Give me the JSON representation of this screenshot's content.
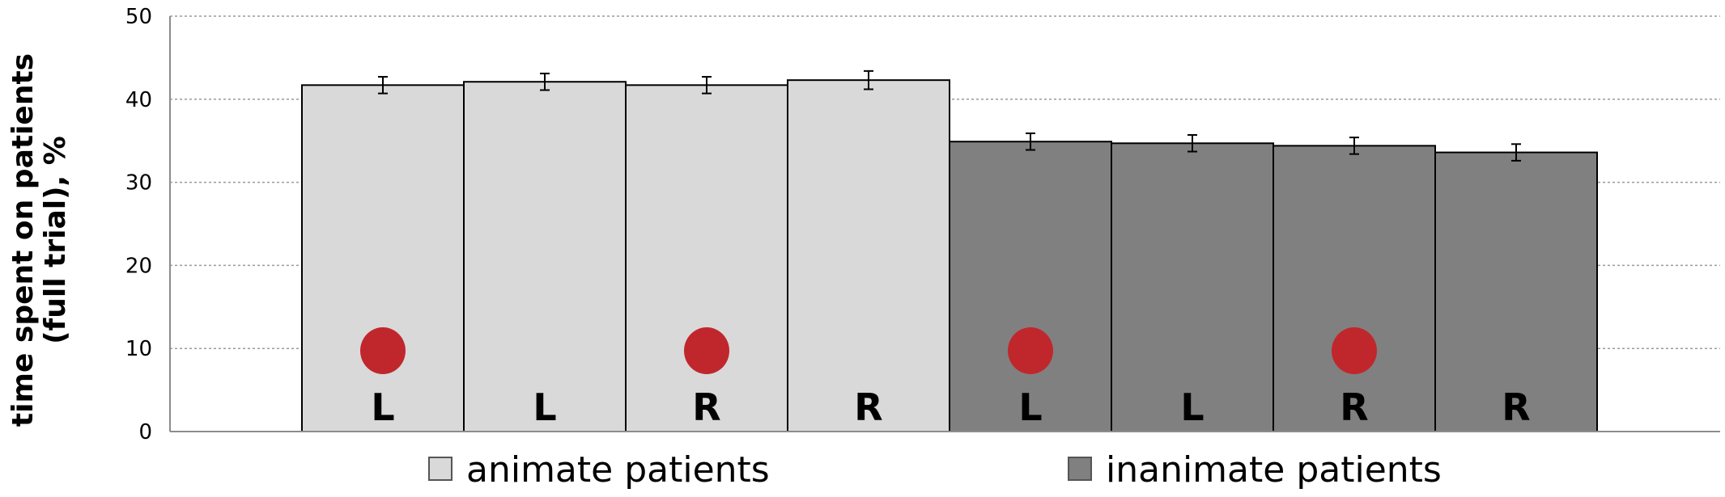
{
  "chart_data": {
    "type": "bar",
    "ylabel_lines": [
      "time spent on patients",
      "(full trial), %"
    ],
    "ylim": [
      0,
      50
    ],
    "yticks": [
      "0",
      "10",
      "20",
      "30",
      "40",
      "50"
    ],
    "grid": true,
    "legend_position": "bottom",
    "bar_labels": [
      "L",
      "L",
      "R",
      "R",
      "L",
      "L",
      "R",
      "R"
    ],
    "values": [
      41.7,
      42.1,
      41.7,
      42.3,
      34.9,
      34.7,
      34.4,
      33.6
    ],
    "errors": [
      1.0,
      1.0,
      1.0,
      1.1,
      1.0,
      1.0,
      1.0,
      1.0
    ],
    "groups": [
      1,
      1,
      1,
      1,
      2,
      2,
      2,
      2
    ],
    "marker": [
      true,
      false,
      true,
      false,
      true,
      false,
      true,
      false
    ],
    "series": [
      {
        "name": "animate patients",
        "color": "#d9d9d9"
      },
      {
        "name": "inanimate patients",
        "color": "#808080"
      }
    ],
    "marker_color": "#c0272d"
  }
}
